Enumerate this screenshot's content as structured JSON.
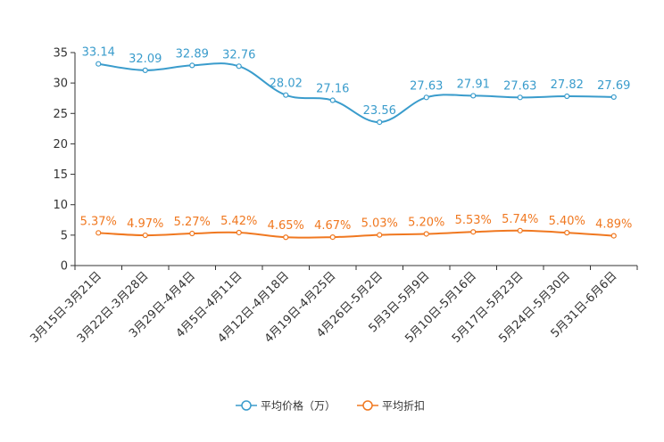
{
  "chart_data": {
    "type": "line",
    "title": "",
    "xlabel": "",
    "ylabel": "",
    "ylim": [
      0,
      35
    ],
    "yticks": [
      0,
      5,
      10,
      15,
      20,
      25,
      30,
      35
    ],
    "grid": false,
    "legend_position": "bottom-center",
    "categories": [
      "3月15日-3月21日",
      "3月22日-3月28日",
      "3月29日-4月4日",
      "4月5日-4月11日",
      "4月12日-4月18日",
      "4月19日-4月25日",
      "4月26日-5月2日",
      "5月3日-5月9日",
      "5月10日-5月16日",
      "5月17日-5月23日",
      "5月24日-5月30日",
      "5月31日-6月6日"
    ],
    "series": [
      {
        "name": "平均价格（万）",
        "color": "#3a9ccc",
        "values": [
          33.14,
          32.09,
          32.89,
          32.76,
          28.02,
          27.16,
          23.56,
          27.63,
          27.91,
          27.63,
          27.82,
          27.69
        ],
        "labels": [
          "33.14",
          "32.09",
          "32.89",
          "32.76",
          "28.02",
          "27.16",
          "23.56",
          "27.63",
          "27.91",
          "27.63",
          "27.82",
          "27.69"
        ]
      },
      {
        "name": "平均折扣",
        "color": "#f07820",
        "values": [
          5.37,
          4.97,
          5.27,
          5.42,
          4.65,
          4.67,
          5.03,
          5.2,
          5.53,
          5.74,
          5.4,
          4.89
        ],
        "labels": [
          "5.37%",
          "4.97%",
          "5.27%",
          "5.42%",
          "4.65%",
          "4.67%",
          "5.03%",
          "5.20%",
          "5.53%",
          "5.74%",
          "5.40%",
          "4.89%"
        ]
      }
    ]
  }
}
